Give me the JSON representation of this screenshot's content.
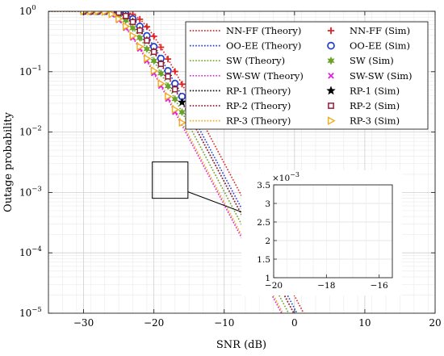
{
  "chart_data": {
    "type": "line",
    "xlabel": "SNR (dB)",
    "ylabel": "Outage probability",
    "xlim": [
      -35,
      20
    ],
    "ylim": [
      1e-05,
      1
    ],
    "yscale": "log",
    "grid": true,
    "xticks": [
      -30,
      -20,
      -10,
      0,
      10,
      20
    ],
    "yticks": [
      1e-05,
      0.0001,
      0.001,
      0.01,
      0.1,
      1
    ],
    "legend_position": "top-right",
    "series": [
      {
        "name": "NN-FF (Theory)",
        "style": "dotted",
        "color": "#dd2222",
        "ref_snr": -16.95
      },
      {
        "name": "OO-EE (Theory)",
        "style": "dotted",
        "color": "#1f3fd1",
        "ref_snr": -17.9
      },
      {
        "name": "SW (Theory)",
        "style": "dotted",
        "color": "#6aa22a",
        "ref_snr": -19.1
      },
      {
        "name": "SW-SW (Theory)",
        "style": "dotted",
        "color": "#e020e0",
        "ref_snr": -20.1
      },
      {
        "name": "RP-1 (Theory)",
        "style": "dotted",
        "color": "#111111",
        "ref_snr": -18.35
      },
      {
        "name": "RP-2 (Theory)",
        "style": "dotted",
        "color": "#9c1c38",
        "ref_snr": -18.35
      },
      {
        "name": "RP-3 (Theory)",
        "style": "dotted",
        "color": "#f0ac1e",
        "ref_snr": -19.9
      },
      {
        "name": "NN-FF (Sim)",
        "marker": "plus",
        "color": "#dd2222",
        "snr": [
          -30,
          -29,
          -28,
          -27,
          -26,
          -25,
          -24,
          -23,
          -22,
          -21,
          -20,
          -19,
          -18,
          -17,
          -16,
          -15,
          -14,
          -13
        ],
        "ref_snr": -16.95
      },
      {
        "name": "OO-EE (Sim)",
        "marker": "circle",
        "color": "#1f3fd1",
        "snr": [
          -30,
          -29,
          -28,
          -27,
          -26,
          -25,
          -24,
          -23,
          -22,
          -21,
          -20,
          -19,
          -18,
          -17,
          -16,
          -15
        ],
        "ref_snr": -17.9
      },
      {
        "name": "SW (Sim)",
        "marker": "star6",
        "color": "#6aa22a",
        "snr": [
          -30,
          -29,
          -28,
          -27,
          -26,
          -25,
          -24,
          -23,
          -22,
          -21,
          -20,
          -19,
          -18,
          -17,
          -16
        ],
        "ref_snr": -19.1
      },
      {
        "name": "SW-SW (Sim)",
        "marker": "x",
        "color": "#e020e0",
        "snr": [
          -30,
          -29,
          -28,
          -27,
          -26,
          -25,
          -24,
          -23,
          -22,
          -21,
          -20,
          -19,
          -18,
          -17
        ],
        "ref_snr": -20.1
      },
      {
        "name": "RP-1 (Sim)",
        "marker": "star5",
        "color": "#000000",
        "snr": [
          -30,
          -29,
          -28,
          -27,
          -26,
          -25,
          -24,
          -23,
          -22,
          -21,
          -20,
          -19,
          -18,
          -17,
          -16,
          -15
        ],
        "ref_snr": -18.35
      },
      {
        "name": "RP-2 (Sim)",
        "marker": "square",
        "color": "#9c1c38",
        "snr": [
          -30,
          -29,
          -28,
          -27,
          -26,
          -25,
          -24,
          -23,
          -22,
          -21,
          -20,
          -19,
          -18,
          -17
        ],
        "ref_snr": -18.35
      },
      {
        "name": "RP-3 (Sim)",
        "marker": "triangle-right",
        "color": "#f0ac1e",
        "snr": [
          -30,
          -29,
          -28,
          -27,
          -26,
          -25,
          -24,
          -23,
          -22,
          -21,
          -20,
          -19,
          -18,
          -17,
          -16
        ],
        "ref_snr": -19.9
      }
    ],
    "zoom_region": {
      "x": [
        -20,
        -15.5
      ],
      "y": [
        0.0008,
        0.0032
      ]
    },
    "inset": {
      "xlim": [
        -20,
        -15.5
      ],
      "ylim": [
        0.001,
        0.0035
      ],
      "xticks": [
        -20,
        -18,
        -16
      ],
      "xtick_labels": [
        "−20",
        "−18",
        "−16"
      ],
      "yticks": [
        0.001,
        0.0015,
        0.002,
        0.0025,
        0.003,
        0.0035
      ],
      "ytick_labels": [
        "1",
        "1.5",
        "2",
        "2.5",
        "3",
        "3.5"
      ],
      "exponent_label": "×10",
      "exponent": "−3"
    },
    "ytick_labels": [
      "10",
      "10",
      "10",
      "10",
      "10",
      "10"
    ],
    "ytick_exponents": [
      "−5",
      "−4",
      "−3",
      "−2",
      "−1",
      "0"
    ],
    "xtick_labels": [
      "−30",
      "−20",
      "−10",
      "0",
      "10",
      "20"
    ]
  }
}
